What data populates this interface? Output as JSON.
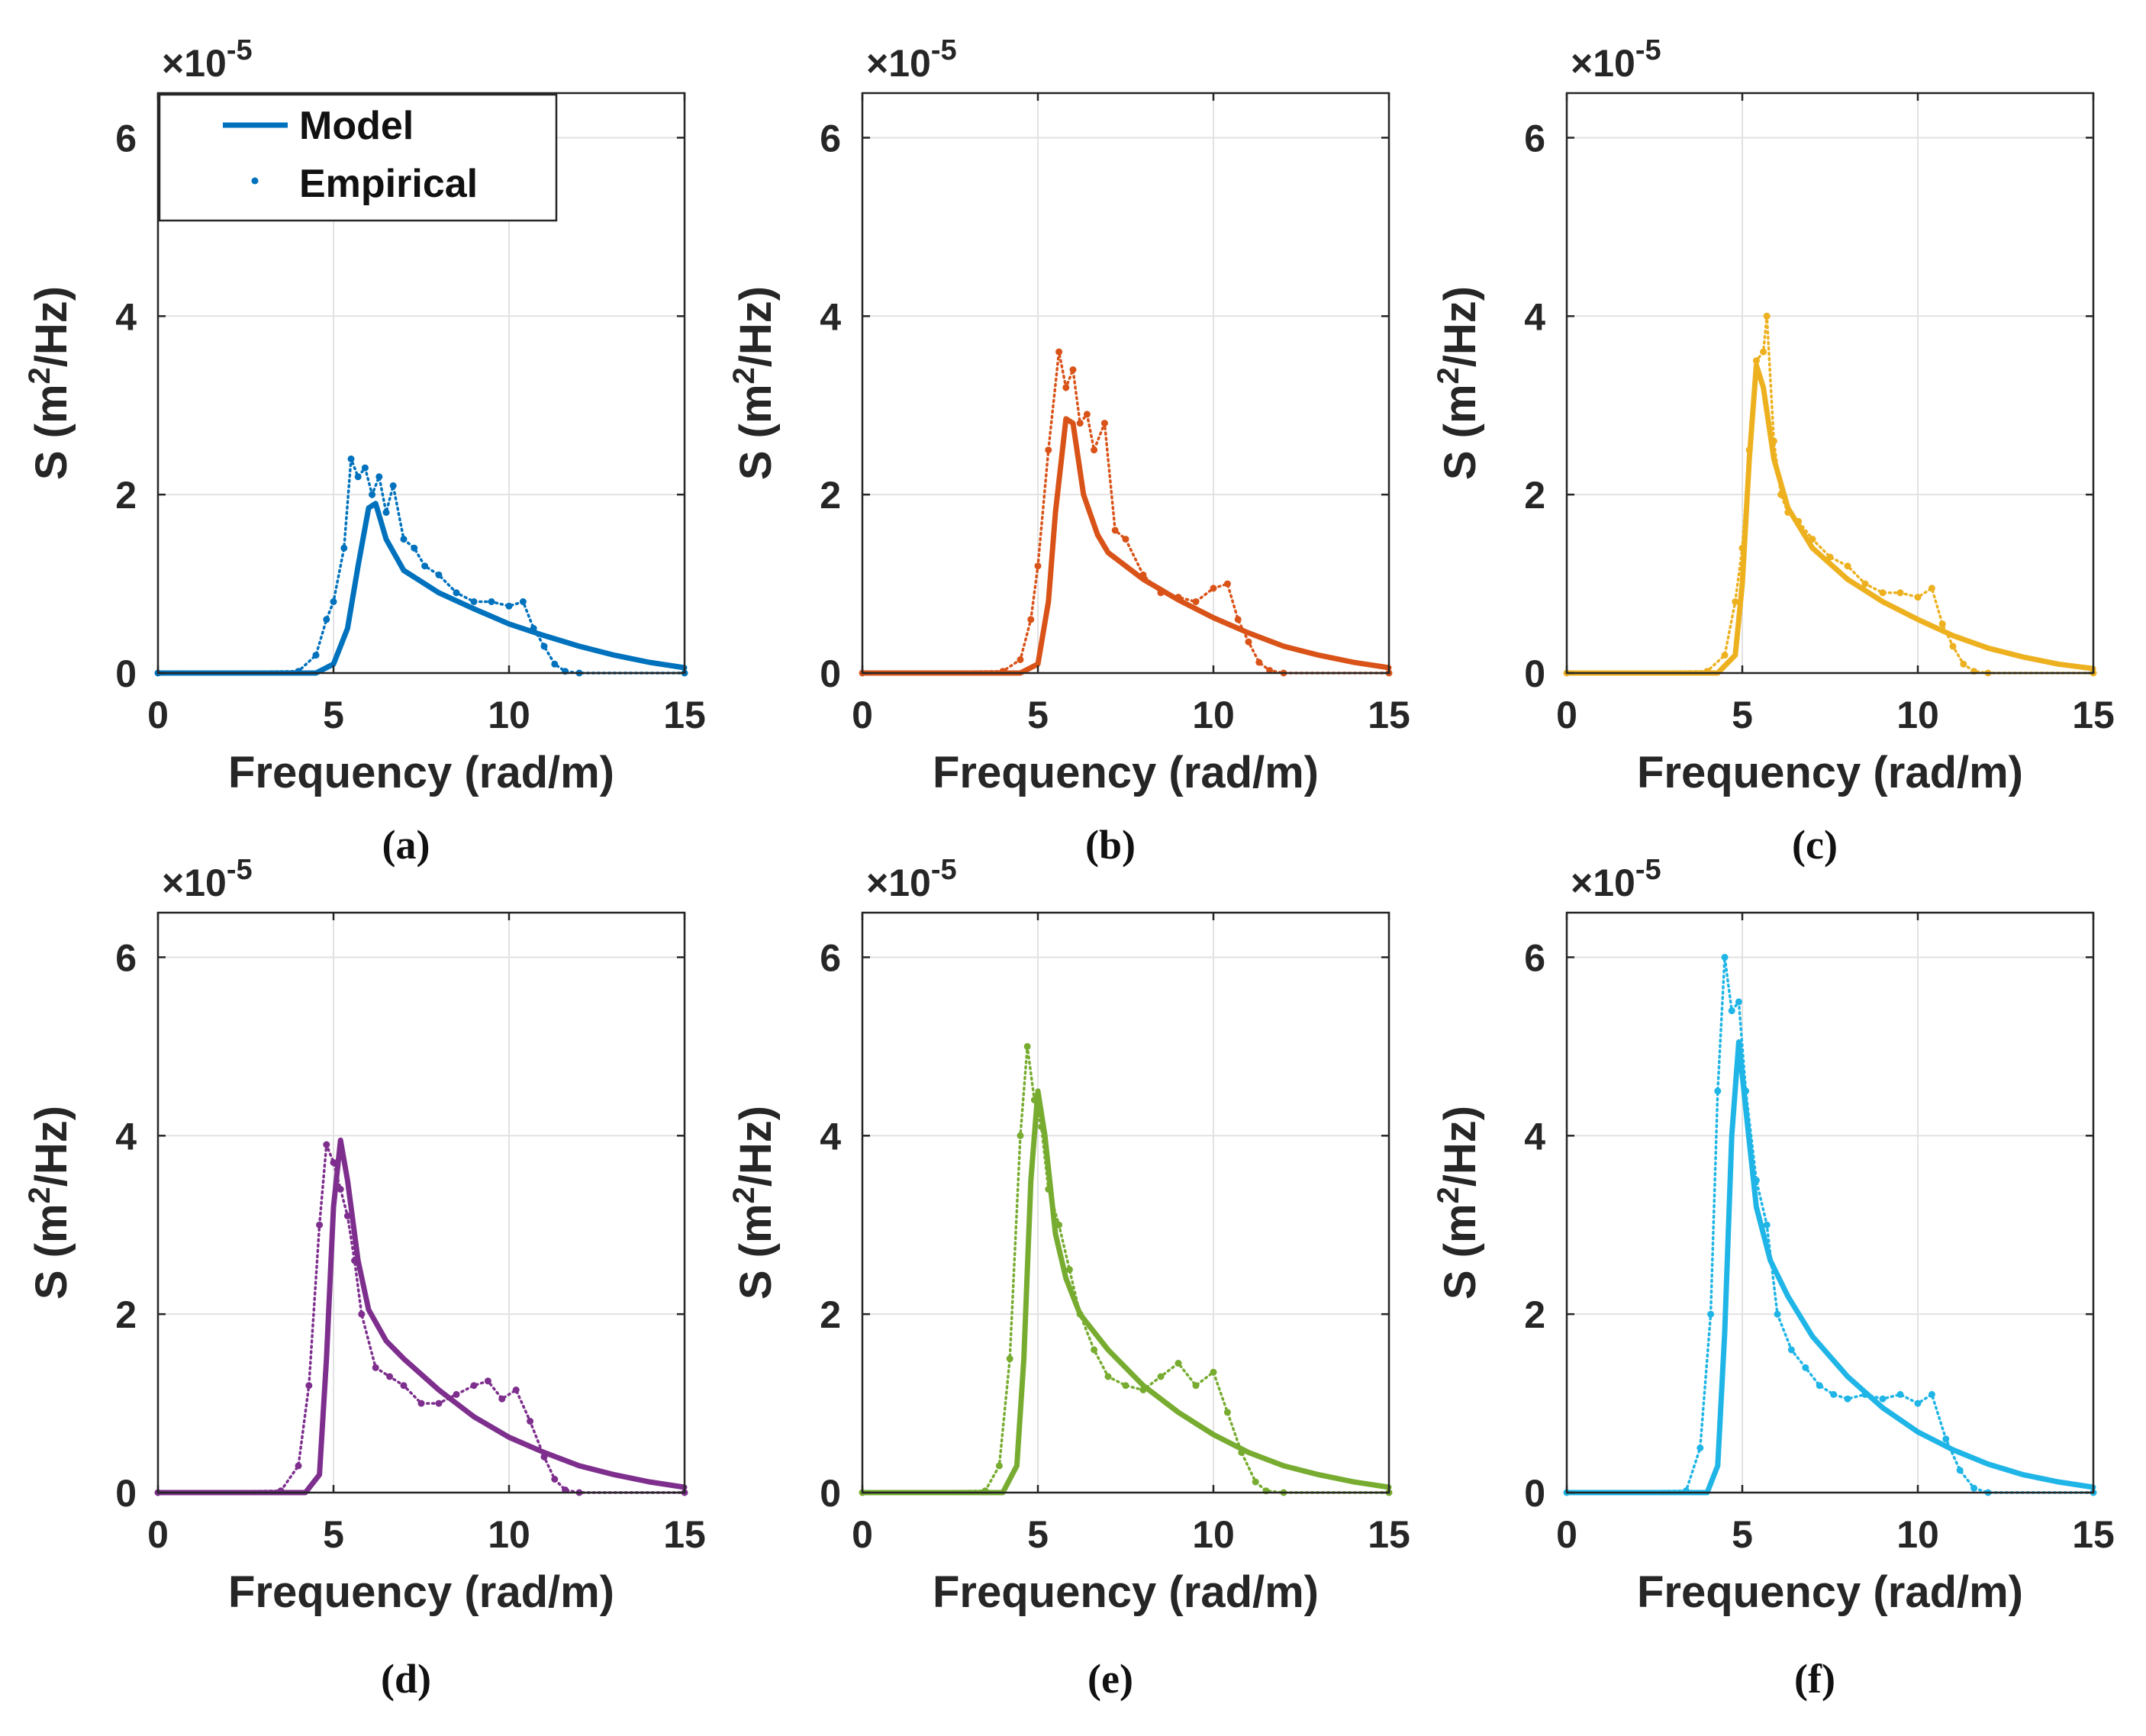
{
  "figure": {
    "shared": {
      "xlabel": "Frequency (rad/m)",
      "ylabel_main": "S (m",
      "ylabel_sup": "2",
      "ylabel_end": "/Hz)",
      "exponent_prefix": "×10",
      "exponent_value": "-5",
      "xlim": [
        0,
        15
      ],
      "ylim": [
        0,
        6.5
      ],
      "xticks": [
        0,
        5,
        10,
        15
      ],
      "yticks": [
        0,
        2,
        4,
        6
      ],
      "grid": true
    },
    "legend": {
      "entries": [
        {
          "label": "Model",
          "style": "line"
        },
        {
          "label": "Empirical",
          "style": "dots"
        }
      ],
      "placement": "top-left of panel (a)"
    }
  },
  "chart_data": [
    {
      "type": "line",
      "panel": "(a)",
      "caption": "(a)",
      "color": "#0072BD",
      "title": "",
      "xlabel": "Frequency (rad/m)",
      "ylabel": "S (m^2/Hz)",
      "xlim": [
        0,
        15
      ],
      "ylim": [
        0,
        6.5
      ],
      "series": [
        {
          "name": "Model",
          "x": [
            0,
            4.5,
            5.0,
            5.4,
            5.7,
            6.0,
            6.2,
            6.5,
            7.0,
            8.0,
            9.0,
            10.0,
            11.0,
            12.0,
            13.0,
            14.0,
            15.0
          ],
          "y": [
            0,
            0,
            0.1,
            0.5,
            1.2,
            1.85,
            1.9,
            1.5,
            1.15,
            0.9,
            0.72,
            0.55,
            0.42,
            0.3,
            0.2,
            0.12,
            0.06
          ]
        },
        {
          "name": "Empirical",
          "x": [
            0,
            4.0,
            4.5,
            4.8,
            5.0,
            5.3,
            5.5,
            5.7,
            5.9,
            6.1,
            6.3,
            6.5,
            6.7,
            7.0,
            7.3,
            7.6,
            8.0,
            8.5,
            9.0,
            9.5,
            10.0,
            10.4,
            10.7,
            11.0,
            11.3,
            11.6,
            12.0,
            15.0
          ],
          "y": [
            0,
            0.02,
            0.2,
            0.6,
            0.8,
            1.4,
            2.4,
            2.2,
            2.3,
            2.0,
            2.2,
            1.8,
            2.1,
            1.5,
            1.4,
            1.2,
            1.1,
            0.9,
            0.8,
            0.8,
            0.75,
            0.8,
            0.5,
            0.3,
            0.1,
            0.02,
            0,
            0
          ]
        }
      ]
    },
    {
      "type": "line",
      "panel": "(b)",
      "caption": "(b)",
      "color": "#D95319",
      "title": "",
      "xlabel": "Frequency (rad/m)",
      "ylabel": "S (m^2/Hz)",
      "xlim": [
        0,
        15
      ],
      "ylim": [
        0,
        6.5
      ],
      "series": [
        {
          "name": "Model",
          "x": [
            0,
            4.5,
            5.0,
            5.3,
            5.5,
            5.8,
            6.0,
            6.3,
            6.7,
            7.0,
            8.0,
            9.0,
            10.0,
            11.0,
            12.0,
            13.0,
            14.0,
            15.0
          ],
          "y": [
            0,
            0,
            0.1,
            0.8,
            1.8,
            2.85,
            2.8,
            2.0,
            1.55,
            1.35,
            1.05,
            0.82,
            0.62,
            0.45,
            0.3,
            0.2,
            0.12,
            0.06
          ]
        },
        {
          "name": "Empirical",
          "x": [
            0,
            4.0,
            4.5,
            4.8,
            5.0,
            5.3,
            5.6,
            5.8,
            6.0,
            6.2,
            6.4,
            6.6,
            6.9,
            7.2,
            7.5,
            8.0,
            8.5,
            9.0,
            9.5,
            10.0,
            10.4,
            10.7,
            11.0,
            11.3,
            11.6,
            12.0,
            15.0
          ],
          "y": [
            0,
            0.02,
            0.15,
            0.6,
            1.2,
            2.5,
            3.6,
            3.2,
            3.4,
            2.8,
            2.9,
            2.5,
            2.8,
            1.6,
            1.5,
            1.1,
            0.9,
            0.85,
            0.8,
            0.95,
            1.0,
            0.6,
            0.35,
            0.12,
            0.03,
            0,
            0
          ]
        }
      ]
    },
    {
      "type": "line",
      "panel": "(c)",
      "caption": "(c)",
      "color": "#EDB120",
      "title": "",
      "xlabel": "Frequency (rad/m)",
      "ylabel": "S (m^2/Hz)",
      "xlim": [
        0,
        15
      ],
      "ylim": [
        0,
        6.5
      ],
      "series": [
        {
          "name": "Model",
          "x": [
            0,
            4.3,
            4.8,
            5.0,
            5.2,
            5.4,
            5.6,
            5.9,
            6.3,
            7.0,
            8.0,
            9.0,
            10.0,
            11.0,
            12.0,
            13.0,
            14.0,
            15.0
          ],
          "y": [
            0,
            0,
            0.2,
            1.0,
            2.4,
            3.45,
            3.2,
            2.4,
            1.85,
            1.4,
            1.05,
            0.8,
            0.6,
            0.42,
            0.28,
            0.18,
            0.1,
            0.05
          ]
        },
        {
          "name": "Empirical",
          "x": [
            0,
            4.0,
            4.5,
            4.8,
            5.0,
            5.2,
            5.4,
            5.6,
            5.7,
            5.9,
            6.1,
            6.3,
            6.6,
            7.0,
            7.5,
            8.0,
            8.5,
            9.0,
            9.5,
            10.0,
            10.4,
            10.7,
            11.0,
            11.3,
            11.6,
            12.0,
            15.0
          ],
          "y": [
            0,
            0.02,
            0.2,
            0.8,
            1.4,
            2.5,
            3.5,
            3.6,
            4.0,
            2.6,
            2.0,
            1.8,
            1.7,
            1.5,
            1.3,
            1.2,
            1.0,
            0.9,
            0.9,
            0.85,
            0.95,
            0.55,
            0.3,
            0.1,
            0.02,
            0,
            0
          ]
        }
      ]
    },
    {
      "type": "line",
      "panel": "(d)",
      "caption": "(d)",
      "color": "#7E2F8E",
      "title": "",
      "xlabel": "Frequency (rad/m)",
      "ylabel": "S (m^2/Hz)",
      "xlim": [
        0,
        15
      ],
      "ylim": [
        0,
        6.5
      ],
      "series": [
        {
          "name": "Model",
          "x": [
            0,
            4.2,
            4.6,
            4.8,
            5.0,
            5.2,
            5.4,
            5.7,
            6.0,
            6.5,
            7.0,
            8.0,
            9.0,
            10.0,
            11.0,
            12.0,
            13.0,
            14.0,
            15.0
          ],
          "y": [
            0,
            0,
            0.2,
            1.5,
            3.2,
            3.95,
            3.5,
            2.6,
            2.05,
            1.7,
            1.5,
            1.15,
            0.85,
            0.62,
            0.45,
            0.3,
            0.2,
            0.12,
            0.06
          ]
        },
        {
          "name": "Empirical",
          "x": [
            0,
            3.5,
            4.0,
            4.3,
            4.6,
            4.8,
            5.0,
            5.2,
            5.4,
            5.6,
            5.8,
            6.2,
            6.6,
            7.0,
            7.5,
            8.0,
            8.5,
            9.0,
            9.4,
            9.8,
            10.2,
            10.6,
            11.0,
            11.3,
            11.6,
            12.0,
            15.0
          ],
          "y": [
            0,
            0.02,
            0.3,
            1.2,
            3.0,
            3.9,
            3.7,
            3.4,
            3.1,
            2.6,
            2.0,
            1.4,
            1.3,
            1.2,
            1.0,
            1.0,
            1.1,
            1.2,
            1.25,
            1.05,
            1.15,
            0.8,
            0.4,
            0.15,
            0.03,
            0,
            0
          ]
        }
      ]
    },
    {
      "type": "line",
      "panel": "(e)",
      "caption": "(e)",
      "color": "#77AC30",
      "title": "",
      "xlabel": "Frequency (rad/m)",
      "ylabel": "S (m^2/Hz)",
      "xlim": [
        0,
        15
      ],
      "ylim": [
        0,
        6.5
      ],
      "series": [
        {
          "name": "Model",
          "x": [
            0,
            4.0,
            4.4,
            4.6,
            4.8,
            5.0,
            5.2,
            5.5,
            5.8,
            6.2,
            7.0,
            8.0,
            9.0,
            10.0,
            11.0,
            12.0,
            13.0,
            14.0,
            15.0
          ],
          "y": [
            0,
            0,
            0.3,
            1.5,
            3.5,
            4.5,
            4.0,
            2.9,
            2.4,
            2.0,
            1.6,
            1.2,
            0.9,
            0.65,
            0.45,
            0.3,
            0.2,
            0.12,
            0.06
          ]
        },
        {
          "name": "Empirical",
          "x": [
            0,
            3.5,
            3.9,
            4.2,
            4.5,
            4.7,
            4.9,
            5.1,
            5.3,
            5.6,
            5.9,
            6.2,
            6.6,
            7.0,
            7.5,
            8.0,
            8.5,
            9.0,
            9.5,
            10.0,
            10.4,
            10.8,
            11.2,
            11.5,
            12.0,
            15.0
          ],
          "y": [
            0,
            0.02,
            0.3,
            1.5,
            4.0,
            5.0,
            4.4,
            4.1,
            3.4,
            3.0,
            2.5,
            2.0,
            1.6,
            1.3,
            1.2,
            1.15,
            1.3,
            1.45,
            1.2,
            1.35,
            0.9,
            0.45,
            0.12,
            0.02,
            0,
            0
          ]
        }
      ]
    },
    {
      "type": "line",
      "panel": "(f)",
      "caption": "(f)",
      "color": "#1FB5E6",
      "title": "",
      "xlabel": "Frequency (rad/m)",
      "ylabel": "S (m^2/Hz)",
      "xlim": [
        0,
        15
      ],
      "ylim": [
        0,
        6.5
      ],
      "series": [
        {
          "name": "Model",
          "x": [
            0,
            4.0,
            4.3,
            4.5,
            4.7,
            4.9,
            5.1,
            5.4,
            5.8,
            6.3,
            7.0,
            8.0,
            9.0,
            10.0,
            11.0,
            12.0,
            13.0,
            14.0,
            15.0
          ],
          "y": [
            0,
            0,
            0.3,
            1.8,
            4.0,
            5.05,
            4.3,
            3.2,
            2.6,
            2.2,
            1.75,
            1.3,
            0.95,
            0.68,
            0.48,
            0.32,
            0.2,
            0.12,
            0.06
          ]
        },
        {
          "name": "Empirical",
          "x": [
            0,
            3.4,
            3.8,
            4.1,
            4.3,
            4.5,
            4.7,
            4.9,
            5.1,
            5.4,
            5.7,
            6.0,
            6.4,
            6.8,
            7.2,
            7.6,
            8.0,
            8.5,
            9.0,
            9.5,
            10.0,
            10.4,
            10.8,
            11.2,
            11.6,
            12.0,
            15.0
          ],
          "y": [
            0,
            0.02,
            0.5,
            2.0,
            4.5,
            6.0,
            5.4,
            5.5,
            4.5,
            3.5,
            3.0,
            2.0,
            1.6,
            1.4,
            1.2,
            1.1,
            1.05,
            1.1,
            1.05,
            1.1,
            1.0,
            1.1,
            0.6,
            0.25,
            0.05,
            0,
            0
          ]
        }
      ]
    }
  ]
}
